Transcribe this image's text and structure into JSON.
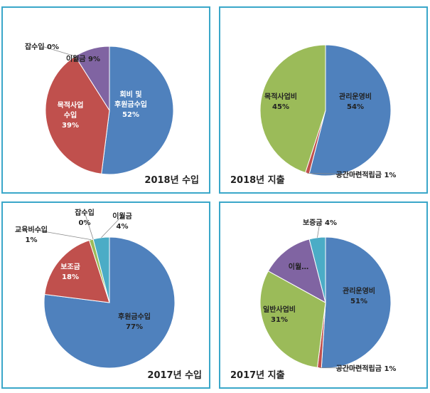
{
  "chart_data": [
    {
      "type": "pie",
      "title": "2018년 수입",
      "slices": [
        {
          "label": "회비 및\n후원금수입",
          "pct": "52%",
          "value": 52,
          "color": "#4f81bd"
        },
        {
          "label": "목적사업\n수입",
          "pct": "39%",
          "value": 39,
          "color": "#c0504d"
        },
        {
          "label": "잡수입",
          "pct": "0%",
          "value": 0,
          "color": "#9bbb59"
        },
        {
          "label": "이월금",
          "pct": "9%",
          "value": 9,
          "color": "#8064a2"
        }
      ]
    },
    {
      "type": "pie",
      "title": "2018년 지출",
      "slices": [
        {
          "label": "관리운영비",
          "pct": "54%",
          "value": 54,
          "color": "#4f81bd"
        },
        {
          "label": "공간마련적립금",
          "pct": "1%",
          "value": 1,
          "color": "#c0504d"
        },
        {
          "label": "목적사업비",
          "pct": "45%",
          "value": 45,
          "color": "#9bbb59"
        }
      ]
    },
    {
      "type": "pie",
      "title": "2017년 수입",
      "slices": [
        {
          "label": "후원금수입",
          "pct": "77%",
          "value": 77,
          "color": "#4f81bd"
        },
        {
          "label": "보조금",
          "pct": "18%",
          "value": 18,
          "color": "#c0504d"
        },
        {
          "label": "교육비수입",
          "pct": "1%",
          "value": 1,
          "color": "#9bbb59"
        },
        {
          "label": "잡수입",
          "pct": "0%",
          "value": 0,
          "color": "#8064a2"
        },
        {
          "label": "이월금",
          "pct": "4%",
          "value": 4,
          "color": "#4bacc6"
        }
      ]
    },
    {
      "type": "pie",
      "title": "2017년 지출",
      "slices": [
        {
          "label": "관리운영비",
          "pct": "51%",
          "value": 51,
          "color": "#4f81bd"
        },
        {
          "label": "공간마련적립금",
          "pct": "1%",
          "value": 1,
          "color": "#c0504d"
        },
        {
          "label": "일반사업비",
          "pct": "31%",
          "value": 31,
          "color": "#9bbb59"
        },
        {
          "label": "이월…",
          "pct": "",
          "value": 13,
          "color": "#8064a2"
        },
        {
          "label": "보증금",
          "pct": "4%",
          "value": 4,
          "color": "#4bacc6"
        }
      ]
    }
  ]
}
